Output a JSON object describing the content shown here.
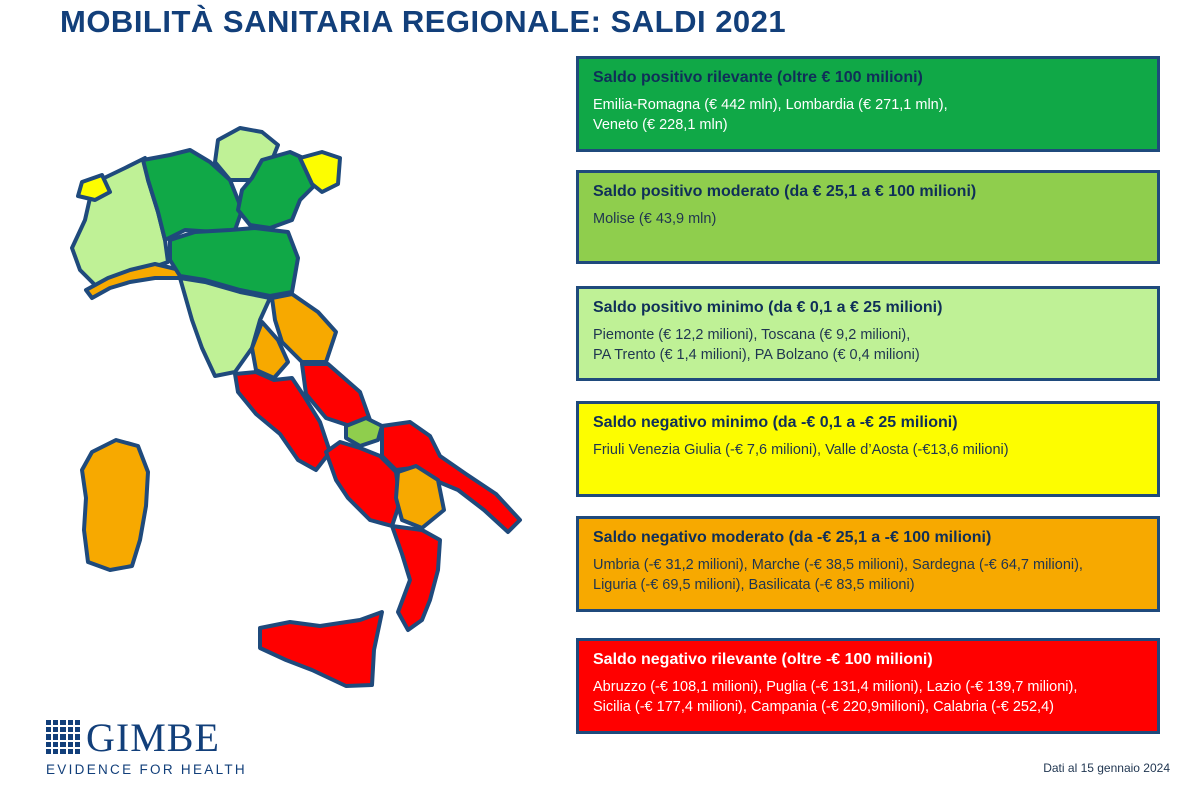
{
  "title": "MOBILITÀ SANITARIA REGIONALE: SALDI 2021",
  "colors": {
    "positivo_rilevante": "#10a847",
    "positivo_moderato": "#8fce4d",
    "positivo_minimo": "#bff196",
    "negativo_minimo": "#fdfd00",
    "negativo_moderato": "#f7a900",
    "negativo_rilevante": "#ff0000",
    "border": "#1f4a7c"
  },
  "legend": [
    {
      "title": "Saldo positivo rilevante (oltre € 100 milioni)",
      "lines": [
        "Emilia-Romagna (€ 442 mln), Lombardia (€ 271,1 mln),",
        "Veneto (€ 228,1 mln)"
      ]
    },
    {
      "title": "Saldo positivo moderato (da € 25,1 a € 100 milioni)",
      "lines": [
        "Molise (€ 43,9 mln)"
      ]
    },
    {
      "title": "Saldo positivo minimo (da € 0,1 a € 25 milioni)",
      "lines": [
        "Piemonte (€ 12,2 milioni), Toscana (€ 9,2 milioni),",
        "PA Trento (€ 1,4 milioni), PA Bolzano (€ 0,4 milioni)"
      ]
    },
    {
      "title": "Saldo negativo minimo (da -€ 0,1 a -€ 25 milioni)",
      "lines": [
        "Friuli Venezia Giulia (-€ 7,6 milioni), Valle d’Aosta (-€13,6 milioni)"
      ]
    },
    {
      "title": "Saldo negativo moderato (da -€ 25,1 a -€ 100 milioni)",
      "lines": [
        "Umbria (-€ 31,2 milioni), Marche (-€ 38,5 milioni), Sardegna (-€ 64,7 milioni),",
        "Liguria (-€ 69,5 milioni), Basilicata (-€ 83,5 milioni)"
      ]
    },
    {
      "title": "Saldo negativo rilevante (oltre -€ 100 milioni)",
      "lines": [
        "Abruzzo (-€ 108,1 milioni), Puglia (-€ 131,4 milioni), Lazio (-€ 139,7 milioni),",
        "Sicilia (-€ 177,4 milioni), Campania (-€ 220,9milioni), Calabria (-€ 252,4)"
      ]
    }
  ],
  "logo": {
    "name": "GIMBE",
    "tagline": "EVIDENCE FOR HEALTH"
  },
  "footnote": "Dati al 15 gennaio 2024"
}
